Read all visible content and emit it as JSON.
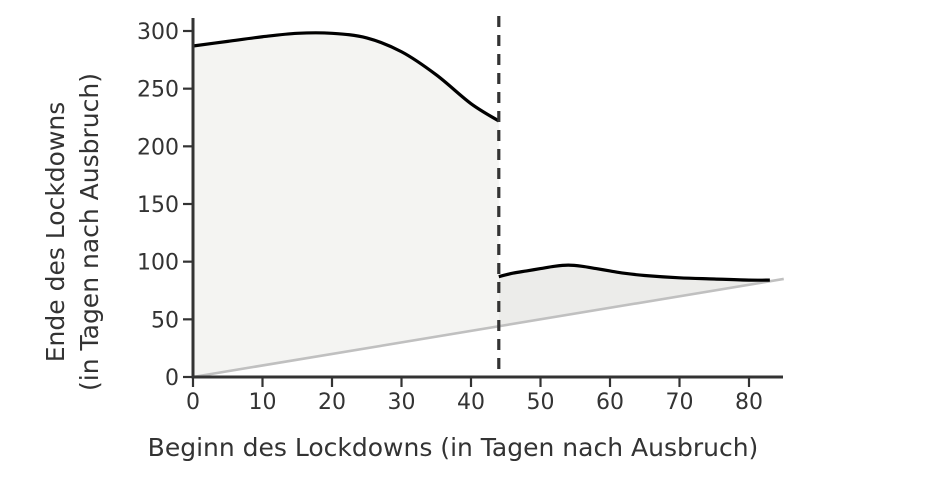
{
  "chart_data": {
    "type": "area",
    "title": "",
    "xlabel": "Beginn des Lockdowns (in Tagen nach Ausbruch)",
    "ylabel_lines": [
      "Ende des Lockdowns",
      "(in Tagen nach Ausbruch)"
    ],
    "xlim": [
      0,
      85
    ],
    "ylim": [
      0,
      310
    ],
    "xticks": [
      0,
      10,
      20,
      30,
      40,
      50,
      60,
      70,
      80
    ],
    "yticks": [
      0,
      50,
      100,
      150,
      200,
      250,
      300
    ],
    "grid": false,
    "legend": "none",
    "threshold_x": 44,
    "diagonal_line": {
      "x": [
        0,
        85
      ],
      "y": [
        0,
        85
      ]
    },
    "series": [
      {
        "x": [
          0,
          5,
          10,
          15,
          20,
          25,
          30,
          35,
          40,
          44
        ],
        "y": [
          287,
          291,
          295,
          298,
          298,
          294,
          282,
          262,
          237,
          222
        ]
      },
      {
        "x": [
          44,
          46,
          48,
          50,
          52,
          54,
          56,
          58,
          60,
          62,
          65,
          70,
          75,
          80,
          83
        ],
        "y": [
          87,
          90,
          92,
          94,
          96,
          97,
          96,
          94,
          92,
          90,
          88,
          86,
          85,
          84,
          84
        ]
      }
    ],
    "colors": {
      "line": "#000000",
      "fill_left": "#f4f4f2",
      "fill_right": "#ececea",
      "diagonal": "#c0c0c0",
      "axis": "#333333",
      "threshold": "#333333"
    }
  }
}
